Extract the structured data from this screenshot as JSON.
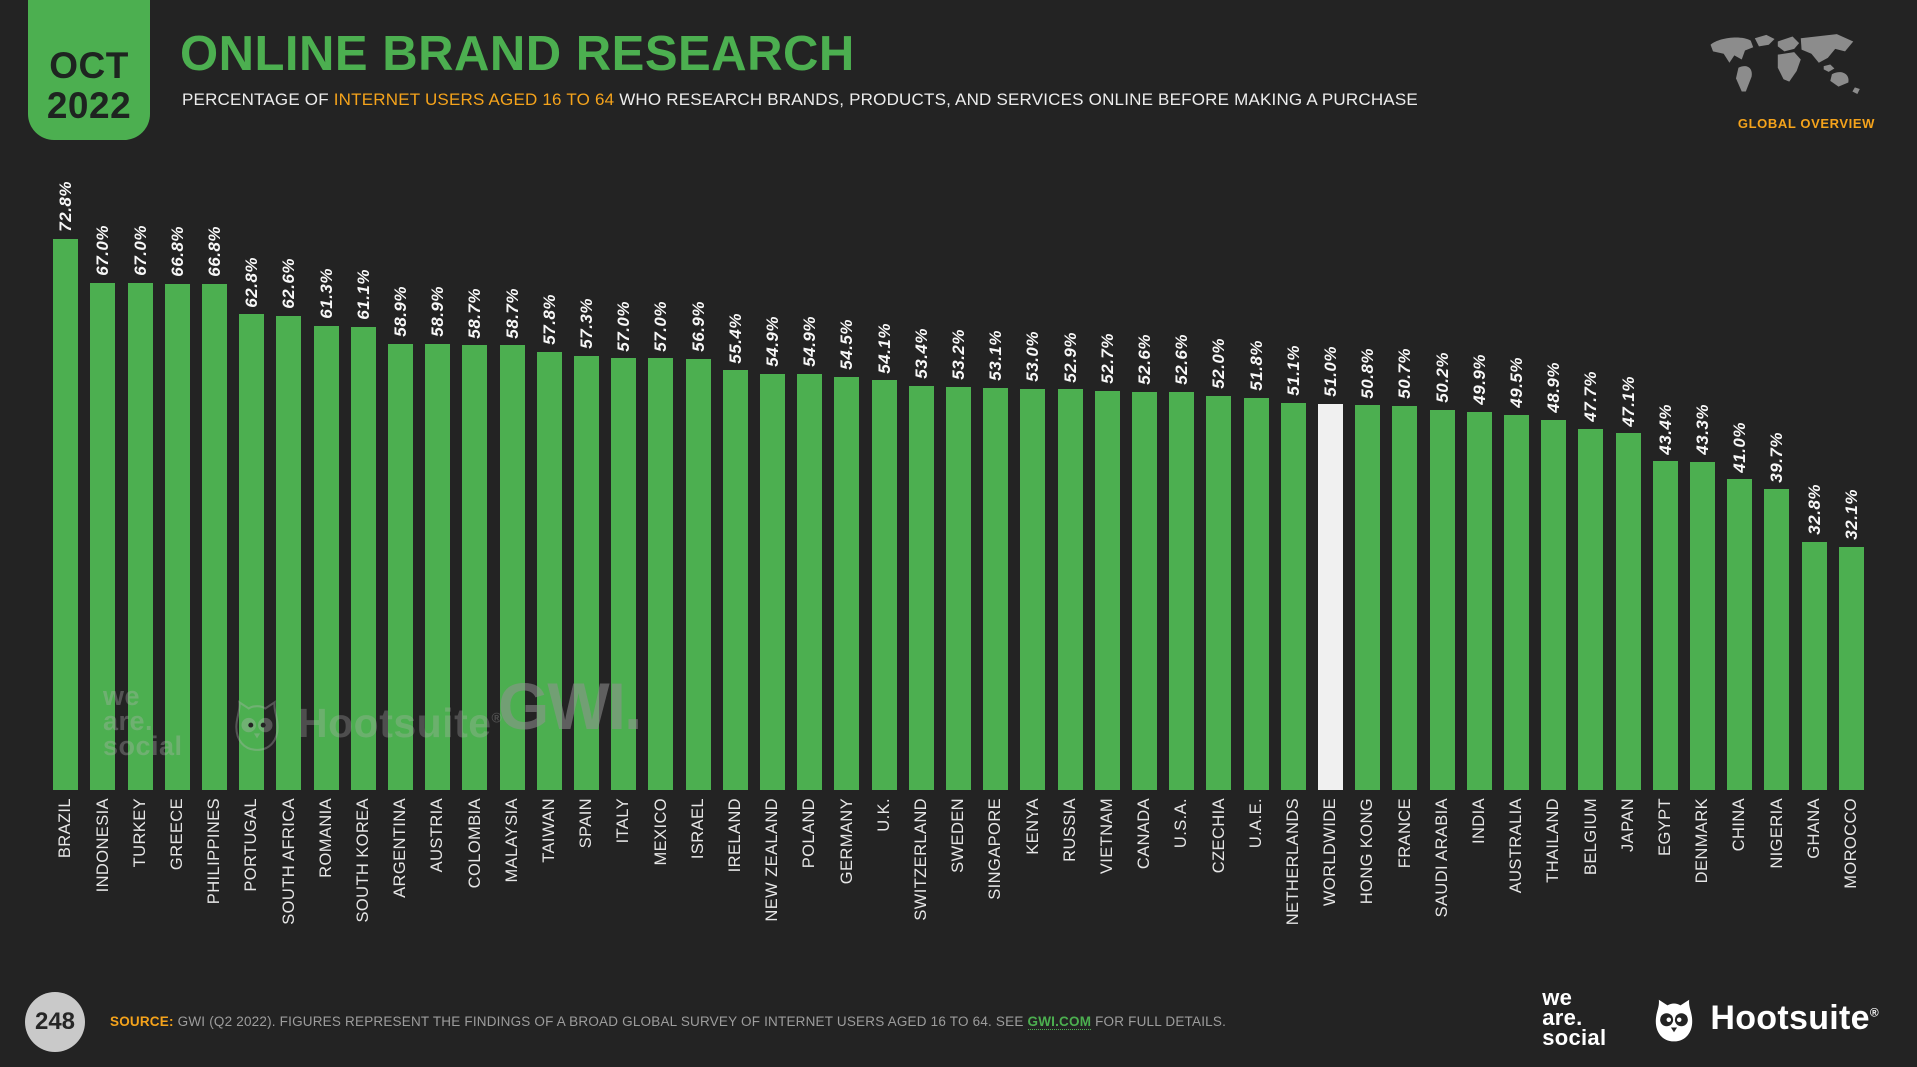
{
  "header": {
    "date_line1": "OCT",
    "date_line2": "2022",
    "title": "ONLINE BRAND RESEARCH",
    "subtitle_prefix": "PERCENTAGE OF ",
    "subtitle_highlight": "INTERNET USERS AGED 16 TO 64",
    "subtitle_suffix": " WHO RESEARCH BRANDS, PRODUCTS, AND SERVICES ONLINE BEFORE MAKING A PURCHASE",
    "overview_label": "GLOBAL OVERVIEW"
  },
  "chart_data": {
    "type": "bar",
    "title": "Online brand research by country, Oct 2022",
    "ylabel": "% of internet users aged 16-64 researching brands online before purchase",
    "value_suffix": "%",
    "ylim": [
      0,
      73
    ],
    "grid": false,
    "bar_color": "#4caf50",
    "highlight_color": "#f0f0f0",
    "highlight_category": "WORLDWIDE",
    "highlight_index": 34,
    "categories": [
      "BRAZIL",
      "INDONESIA",
      "TURKEY",
      "GREECE",
      "PHILIPPINES",
      "PORTUGAL",
      "SOUTH AFRICA",
      "ROMANIA",
      "SOUTH KOREA",
      "ARGENTINA",
      "AUSTRIA",
      "COLOMBIA",
      "MALAYSIA",
      "TAIWAN",
      "SPAIN",
      "ITALY",
      "MEXICO",
      "ISRAEL",
      "IRELAND",
      "NEW ZEALAND",
      "POLAND",
      "GERMANY",
      "U.K.",
      "SWITZERLAND",
      "SWEDEN",
      "SINGAPORE",
      "KENYA",
      "RUSSIA",
      "VIETNAM",
      "CANADA",
      "U.S.A.",
      "CZECHIA",
      "U.A.E.",
      "NETHERLANDS",
      "WORLDWIDE",
      "HONG KONG",
      "FRANCE",
      "SAUDI ARABIA",
      "INDIA",
      "AUSTRALIA",
      "THAILAND",
      "BELGIUM",
      "JAPAN",
      "EGYPT",
      "DENMARK",
      "CHINA",
      "NIGERIA",
      "GHANA",
      "MOROCCO"
    ],
    "values": [
      72.8,
      67.0,
      67.0,
      66.8,
      66.8,
      62.8,
      62.6,
      61.3,
      61.1,
      58.9,
      58.9,
      58.7,
      58.7,
      57.8,
      57.3,
      57.0,
      57.0,
      56.9,
      55.4,
      54.9,
      54.9,
      54.5,
      54.1,
      53.4,
      53.2,
      53.1,
      53.0,
      52.9,
      52.7,
      52.6,
      52.6,
      52.0,
      51.8,
      51.1,
      51.0,
      50.8,
      50.7,
      50.2,
      49.9,
      49.5,
      48.9,
      47.7,
      47.1,
      43.4,
      43.3,
      41.0,
      39.7,
      32.8,
      32.1
    ]
  },
  "watermarks": {
    "we_are_social": [
      "we",
      "are.",
      "social"
    ],
    "hootsuite": "Hootsuite",
    "registered": "®",
    "gwi": "GWI."
  },
  "footer": {
    "page_number": "248",
    "source_label": "SOURCE:",
    "source_text": "GWI (Q2 2022). FIGURES REPRESENT THE FINDINGS OF A BROAD GLOBAL SURVEY OF INTERNET USERS AGED 16 TO 64. SEE ",
    "source_link": "GWI.COM",
    "source_suffix": " FOR FULL DETAILS.",
    "we_are_social": [
      "we",
      "are.",
      "social"
    ],
    "hootsuite": "Hootsuite",
    "registered": "®"
  },
  "colors": {
    "background": "#232323",
    "accent_green": "#4caf50",
    "accent_orange": "#f5a31b",
    "bar_highlight": "#f0f0f0",
    "text_light": "#f2f2f2",
    "text_gray": "#9d9d9d",
    "map_gray": "#8c8c8c",
    "page_circle": "#c9c9c9"
  }
}
